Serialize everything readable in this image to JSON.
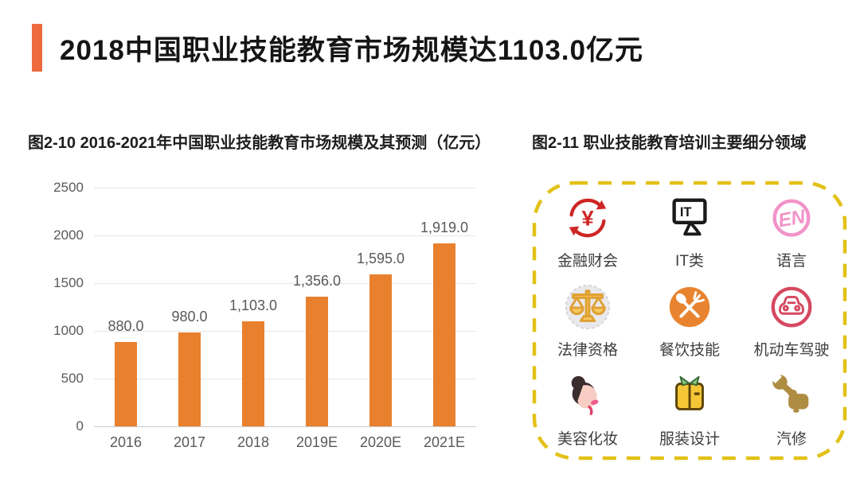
{
  "header": {
    "title": "2018中国职业技能教育市场规模达1103.0亿元"
  },
  "left_section": {
    "title": "图2-10 2016-2021年中国职业技能教育市场规模及其预测（亿元）"
  },
  "right_section": {
    "title": "图2-11 职业技能教育培训主要细分领域",
    "categories": [
      {
        "icon": "finance-icon",
        "glyph": "¥",
        "label": "金融财会"
      },
      {
        "icon": "it-icon",
        "glyph": "IT",
        "label": "IT类"
      },
      {
        "icon": "language-icon",
        "glyph": "EN",
        "label": "语言"
      },
      {
        "icon": "law-icon",
        "glyph": "",
        "label": "法律资格"
      },
      {
        "icon": "cooking-icon",
        "glyph": "",
        "label": "餐饮技能"
      },
      {
        "icon": "driving-icon",
        "glyph": "",
        "label": "机动车驾驶"
      },
      {
        "icon": "beauty-icon",
        "glyph": "",
        "label": "美容化妆"
      },
      {
        "icon": "fashion-icon",
        "glyph": "",
        "label": "服装设计"
      },
      {
        "icon": "auto-repair-icon",
        "glyph": "",
        "label": "汽修"
      }
    ]
  },
  "chart_data": {
    "type": "bar",
    "title": "图2-10 2016-2021年中国职业技能教育市场规模及其预测（亿元）",
    "categories": [
      "2016",
      "2017",
      "2018",
      "2019E",
      "2020E",
      "2021E"
    ],
    "values": [
      880.0,
      980.0,
      1103.0,
      1356.0,
      1595.0,
      1919.0
    ],
    "value_labels": [
      "880.0",
      "980.0",
      "1,103.0",
      "1,356.0",
      "1,595.0",
      "1,919.0"
    ],
    "xlabel": "",
    "ylabel": "",
    "ylim": [
      0,
      2500
    ],
    "yticks": [
      0,
      500,
      1000,
      1500,
      2000,
      2500
    ],
    "grid": true,
    "legend": false,
    "bar_color": "#E8802D"
  },
  "colors": {
    "accent_bar": "#EC6A3E",
    "bar": "#E8802D",
    "dashed_border": "#E3C117",
    "finance_red": "#CE2626",
    "language_pink": "#F193C8",
    "driving_red": "#D64860",
    "cooking_orange": "#E8842F",
    "law_gold": "#F6C75F",
    "fashion_yellow": "#F5C636",
    "auto_gold": "#AE8C42"
  }
}
